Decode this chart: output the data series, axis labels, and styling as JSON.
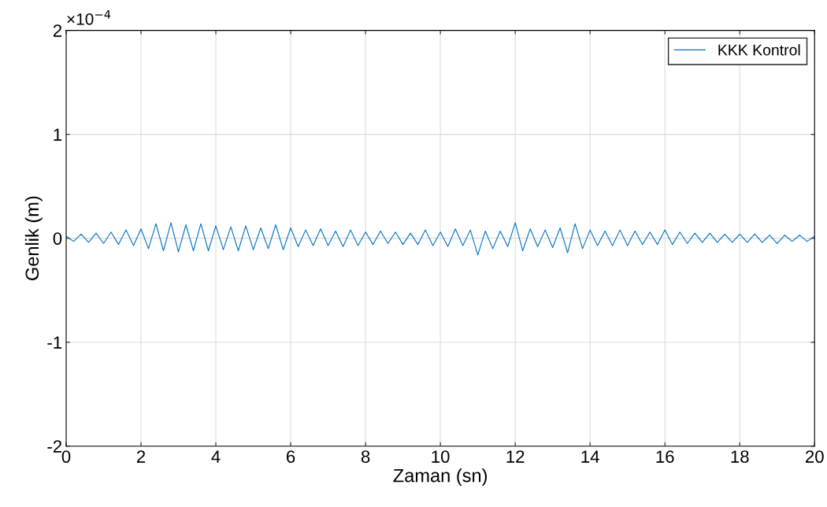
{
  "chart_data": {
    "type": "line",
    "xlabel": "Zaman (sn)",
    "ylabel": "Genlik (m)",
    "annotations": [
      "×10$^{−4}$"
    ],
    "x": [
      0,
      0.2,
      0.4,
      0.6,
      0.8,
      1.0,
      1.2,
      1.4,
      1.6,
      1.8,
      2.0,
      2.2,
      2.4,
      2.6,
      2.8,
      3.0,
      3.2,
      3.4,
      3.6,
      3.8,
      4.0,
      4.2,
      4.4,
      4.6,
      4.8,
      5.0,
      5.2,
      5.4,
      5.6,
      5.8,
      6.0,
      6.2,
      6.4,
      6.6,
      6.8,
      7.0,
      7.2,
      7.4,
      7.6,
      7.8,
      8.0,
      8.2,
      8.4,
      8.6,
      8.8,
      9.0,
      9.2,
      9.4,
      9.6,
      9.8,
      10.0,
      10.2,
      10.4,
      10.6,
      10.8,
      11.0,
      11.2,
      11.4,
      11.6,
      11.8,
      12.0,
      12.2,
      12.4,
      12.6,
      12.8,
      13.0,
      13.2,
      13.4,
      13.6,
      13.8,
      14.0,
      14.2,
      14.4,
      14.6,
      14.8,
      15.0,
      15.2,
      15.4,
      15.6,
      15.8,
      16.0,
      16.2,
      16.4,
      16.6,
      16.8,
      17.0,
      17.2,
      17.4,
      17.6,
      17.8,
      18.0,
      18.2,
      18.4,
      18.6,
      18.8,
      19.0,
      19.2,
      19.4,
      19.6,
      19.8,
      20.0
    ],
    "series": [
      {
        "name": "KKK Kontrol",
        "color": "#0072bd",
        "values": [
          0.02,
          -0.03,
          0.04,
          -0.04,
          0.05,
          -0.05,
          0.06,
          -0.06,
          0.08,
          -0.07,
          0.09,
          -0.1,
          0.14,
          -0.12,
          0.15,
          -0.13,
          0.13,
          -0.12,
          0.14,
          -0.12,
          0.12,
          -0.11,
          0.11,
          -0.12,
          0.12,
          -0.11,
          0.1,
          -0.1,
          0.13,
          -0.11,
          0.1,
          -0.08,
          0.08,
          -0.07,
          0.09,
          -0.07,
          0.07,
          -0.08,
          0.08,
          -0.07,
          0.06,
          -0.06,
          0.07,
          -0.05,
          0.06,
          -0.06,
          0.05,
          -0.06,
          0.08,
          -0.07,
          0.06,
          -0.08,
          0.09,
          -0.07,
          0.08,
          -0.16,
          0.07,
          -0.1,
          0.07,
          -0.08,
          0.15,
          -0.12,
          0.09,
          -0.08,
          0.08,
          -0.09,
          0.1,
          -0.14,
          0.14,
          -0.1,
          0.08,
          -0.07,
          0.07,
          -0.07,
          0.08,
          -0.07,
          0.07,
          -0.06,
          0.06,
          -0.06,
          0.08,
          -0.06,
          0.06,
          -0.05,
          0.05,
          -0.04,
          0.05,
          -0.04,
          0.04,
          -0.04,
          0.04,
          -0.04,
          0.04,
          -0.04,
          0.03,
          -0.05,
          0.03,
          -0.03,
          0.03,
          -0.03,
          0.02
        ]
      }
    ],
    "xlim": [
      0,
      20
    ],
    "xticks": [
      0,
      2,
      4,
      6,
      8,
      10,
      12,
      14,
      16,
      18,
      20
    ],
    "ylim": [
      -2,
      2
    ],
    "yticks": [
      -2,
      -1,
      0,
      1,
      2
    ],
    "grid": true,
    "legend": "top right",
    "line_style": "solid",
    "marker": "none"
  }
}
